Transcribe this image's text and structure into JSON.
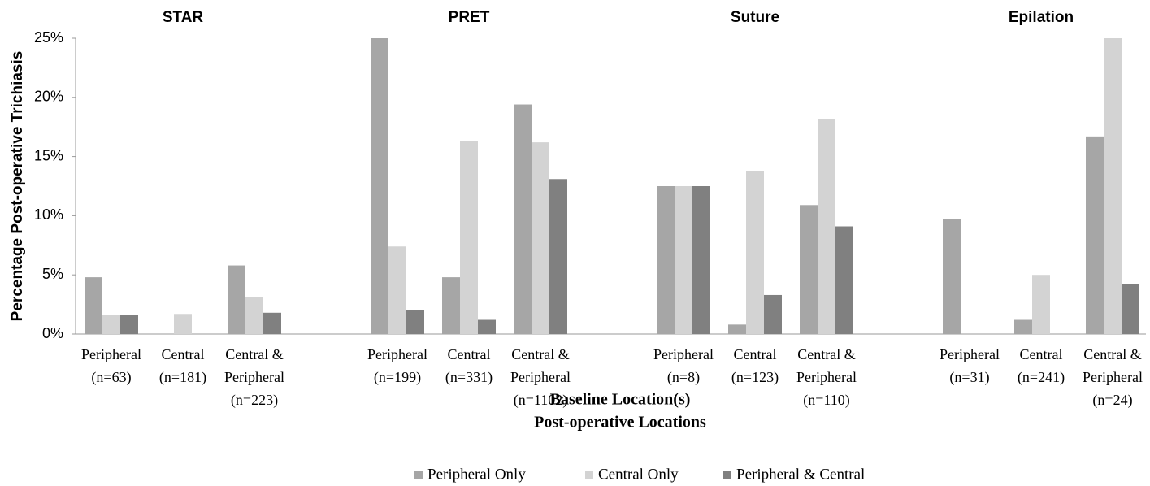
{
  "chart_data": {
    "type": "grouped_bar",
    "groups": [
      "STAR",
      "PRET",
      "Suture",
      "Epilation"
    ],
    "categories": [
      [
        "Peripheral",
        "(n=63)"
      ],
      [
        "Central",
        "(n=181)"
      ],
      [
        "Central &",
        "Peripheral",
        "(n=223)"
      ],
      [
        "Peripheral",
        "(n=199)"
      ],
      [
        "Central",
        "(n=331)"
      ],
      [
        "Central &",
        "Peripheral",
        "(n=1102)"
      ],
      [
        "Peripheral",
        "(n=8)"
      ],
      [
        "Central",
        "(n=123)"
      ],
      [
        "Central &",
        "Peripheral",
        "(n=110)"
      ],
      [
        "Peripheral",
        "(n=31)"
      ],
      [
        "Central",
        "(n=241)"
      ],
      [
        "Central &",
        "Peripheral",
        "(n=24)"
      ]
    ],
    "series": [
      {
        "name": "Peripheral Only",
        "color": "#a6a6a6",
        "values": [
          4.8,
          0,
          5.8,
          25,
          4.8,
          19.4,
          12.5,
          0.8,
          10.9,
          9.7,
          1.2,
          16.7
        ]
      },
      {
        "name": "Central Only",
        "color": "#d3d3d3",
        "values": [
          1.6,
          1.7,
          3.1,
          7.4,
          16.3,
          16.2,
          12.5,
          13.8,
          18.2,
          0,
          5.0,
          25
        ]
      },
      {
        "name": "Peripheral & Central",
        "color": "#808080",
        "values": [
          1.6,
          0,
          1.8,
          2.0,
          1.2,
          13.1,
          12.5,
          3.3,
          9.1,
          0,
          0,
          4.2
        ]
      }
    ],
    "ylabel": "Percentage Post-operative Trichiasis",
    "xlabel": "Baseline Location(s)",
    "legend_title": "Post-operative Locations",
    "ylim": [
      0,
      25
    ],
    "yticks": [
      {
        "value": 0,
        "label": "0%"
      },
      {
        "value": 5,
        "label": "5%"
      },
      {
        "value": 10,
        "label": "10%"
      },
      {
        "value": 15,
        "label": "15%"
      },
      {
        "value": 20,
        "label": "20%"
      },
      {
        "value": 25,
        "label": "25%"
      }
    ],
    "legend": "bottom"
  }
}
